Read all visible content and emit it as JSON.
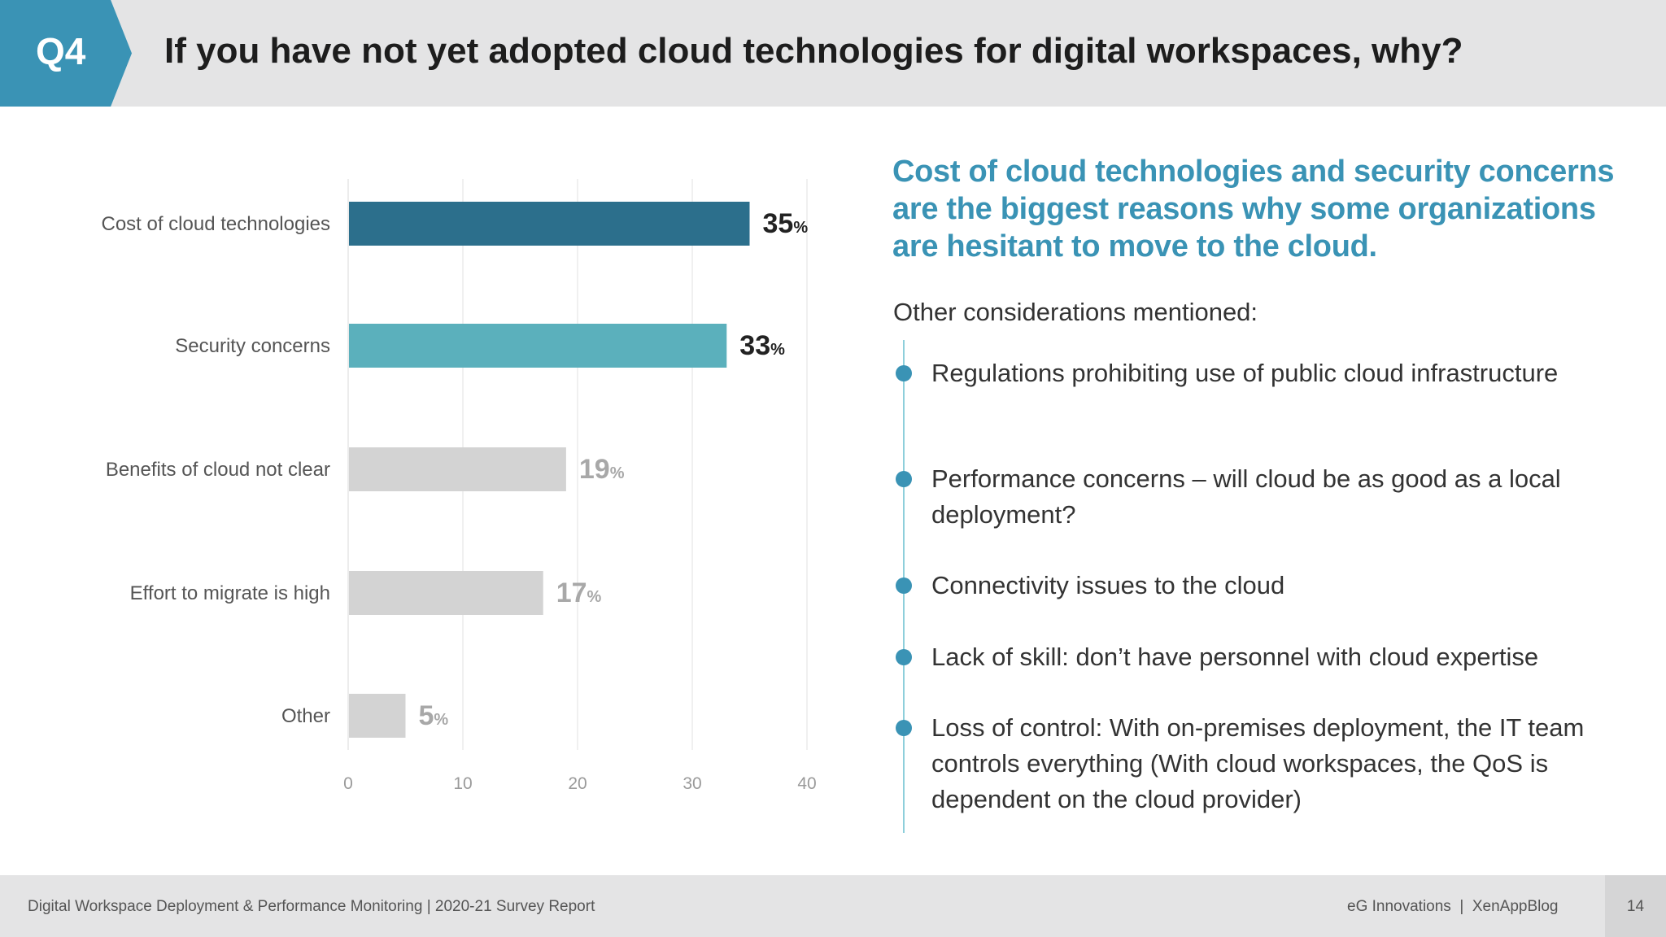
{
  "header": {
    "tag": "Q4",
    "title": "If you have not yet adopted cloud technologies for digital workspaces, why?"
  },
  "chart_data": {
    "type": "bar",
    "orientation": "horizontal",
    "categories": [
      "Cost of cloud technologies",
      "Security concerns",
      "Benefits of cloud not clear",
      "Effort to migrate is high",
      "Other"
    ],
    "values": [
      35,
      33,
      19,
      17,
      5
    ],
    "value_labels": [
      "35",
      "33",
      "19",
      "17",
      "5"
    ],
    "unit": "%",
    "xlim": [
      0,
      40
    ],
    "xticks": [
      "0",
      "10",
      "20",
      "30",
      "40"
    ],
    "grid": true,
    "colors": [
      "#2c6f8c",
      "#5bb0bc",
      "#d3d3d3",
      "#d3d3d3",
      "#d3d3d3"
    ],
    "label_colors": [
      "#222222",
      "#222222",
      "#a8a8a8",
      "#a8a8a8",
      "#a8a8a8"
    ]
  },
  "insight": {
    "headline": "Cost of cloud technologies and security concerns are the biggest reasons why some organizations are hesitant to move to the cloud.",
    "other_heading": "Other considerations mentioned:",
    "points": [
      "Regulations prohibiting use of public cloud infrastructure",
      "Performance concerns – will cloud be as good as a local deployment?",
      "Connectivity issues to the cloud",
      "Lack of skill: don’t have personnel with cloud expertise",
      "Loss of control: With on-premises deployment, the IT team controls everything (With cloud workspaces, the QoS is dependent on the cloud provider)"
    ]
  },
  "footer": {
    "left": "Digital Workspace Deployment & Performance Monitoring | 2020-21 Survey Report",
    "right": "eG Innovations  |  XenAppBlog",
    "page": "14"
  },
  "colors": {
    "accent": "#3a93b5",
    "header_bg": "#e4e4e5",
    "bar_dark": "#2c6f8c",
    "bar_light": "#5bb0bc",
    "bar_gray": "#d3d3d3"
  }
}
